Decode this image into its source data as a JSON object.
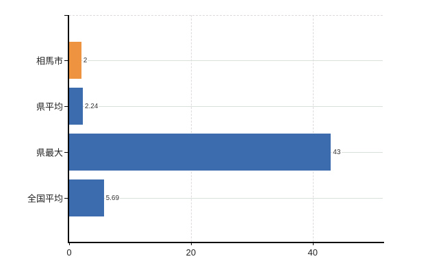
{
  "chart_data": {
    "type": "bar",
    "orientation": "horizontal",
    "title": "",
    "xlabel": "",
    "ylabel": "",
    "categories": [
      "相馬市",
      "県平均",
      "県最大",
      "全国平均"
    ],
    "values": [
      2,
      2.24,
      43,
      5.69
    ],
    "value_labels": [
      "2",
      "2.24",
      "43",
      "5.69"
    ],
    "bar_colors": [
      "#ee9440",
      "#3c6bae",
      "#3c6bae",
      "#3c6bae"
    ],
    "xlim": [
      0,
      51.5
    ],
    "xticks": [
      0,
      20,
      40
    ],
    "xtick_labels": [
      "0",
      "20",
      "40"
    ],
    "grid": "vertical-dashed-and-horizontal-category-lines",
    "legend": "none",
    "colors": {
      "highlight_bar": "#ee9440",
      "default_bar": "#3c6bae",
      "gridline": "#ddd9dd",
      "category_line": "#d9e0d9",
      "axis": "#000000",
      "background": "#ffffff"
    }
  }
}
